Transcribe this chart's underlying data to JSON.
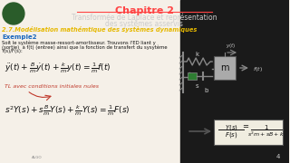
{
  "bg_color": "#1a1a1a",
  "title_line1": "Chapitre 2",
  "title_line2": "Transformée de Laplace et représentation",
  "title_line3": "des systèmes asservis",
  "section_title": "2.7.Modélisation mathémtique des systèmes dynamiques",
  "example_label": "Exemple2",
  "example_text1": "Soit le système masse-ressort-amortisseur. Trouvons l'ED liant y",
  "example_text2": "(sortie)  à f(t) (entree) ainsi que la fonction de transfert du sysytème",
  "example_text3": "Y(s)/F(s):",
  "tl_text": "TL avec conditions initiales nules",
  "logo_circle_color": "#2a5c2a",
  "section_color": "#e6b800",
  "example_color": "#1565c0",
  "tl_color": "#c0392b",
  "title_color": "#ff4444",
  "text_color": "#111111",
  "light_text_color": "#cccccc",
  "dark_bg_color": "#1a1a1a",
  "page_bg_color": "#f5f0e8",
  "tf_box_color": "#f0ede0",
  "tf_box_edge_color": "#555555",
  "mass_color": "#aaaaaa",
  "damper_color": "#2e7d32",
  "diagram_color": "#888888"
}
